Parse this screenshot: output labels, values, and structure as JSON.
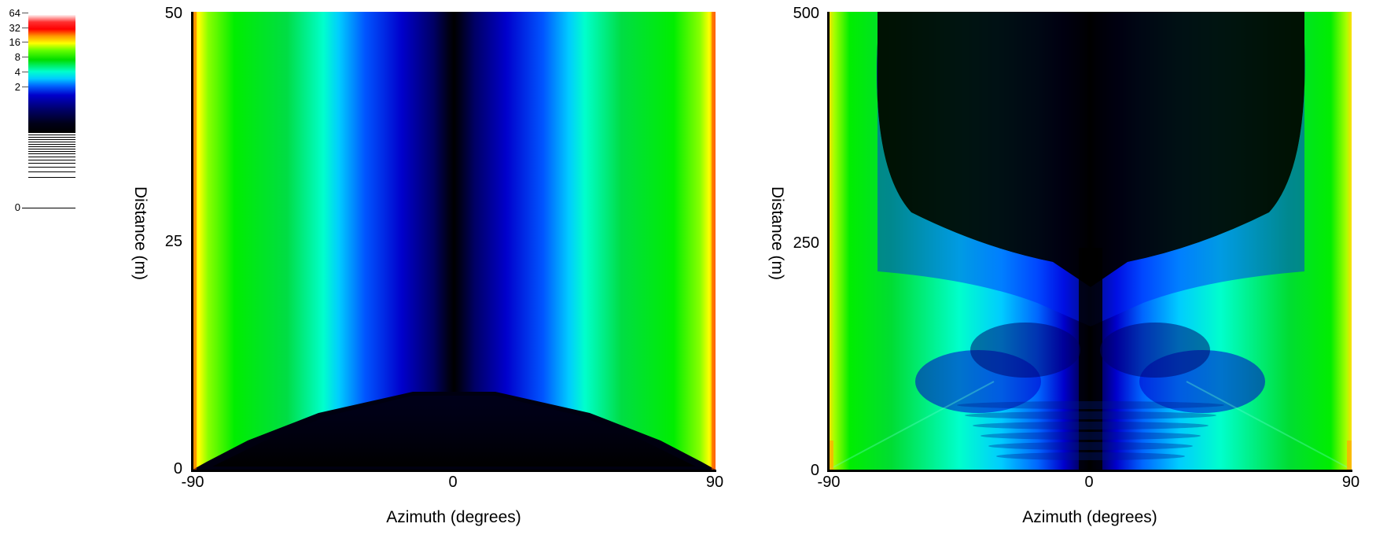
{
  "colorbar": {
    "ticks": [
      "64",
      "32",
      "16",
      "8",
      "4",
      "2",
      "0"
    ],
    "colors": [
      "#ff0000",
      "#ffff00",
      "#00dd00",
      "#00ffff",
      "#0000ff",
      "#000000"
    ]
  },
  "chart_data": [
    {
      "type": "heatmap",
      "xlabel": "Azimuth (degrees)",
      "ylabel": "Distance (m)",
      "xlim": [
        -90,
        90
      ],
      "ylim": [
        0,
        50
      ],
      "xticks": [
        "-90",
        "0",
        "90"
      ],
      "yticks": [
        "0",
        "25",
        "50"
      ],
      "color_scale": [
        0,
        2,
        4,
        8,
        16,
        32,
        64
      ],
      "description_values": {
        "center_value_low": 0,
        "edge_value_high": 64
      }
    },
    {
      "type": "heatmap",
      "xlabel": "Azimuth (degrees)",
      "ylabel": "Distance (m)",
      "xlim": [
        -90,
        90
      ],
      "ylim": [
        0,
        500
      ],
      "xticks": [
        "-90",
        "0",
        "90"
      ],
      "yticks": [
        "0",
        "250",
        "500"
      ],
      "color_scale": [
        0,
        2,
        4,
        8,
        16,
        32,
        64
      ]
    }
  ]
}
